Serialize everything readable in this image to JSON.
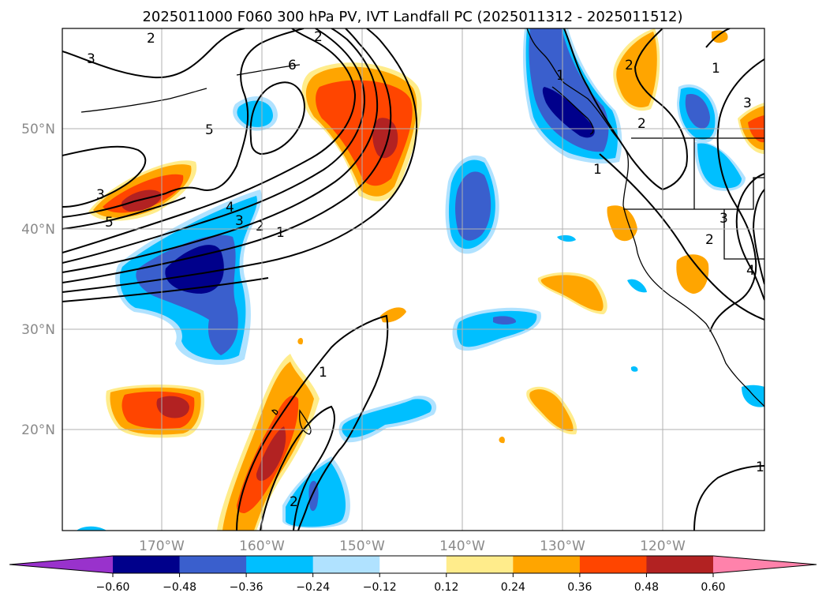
{
  "title": "2025011000 F060 300 hPa PV, IVT Landfall PC (2025011312 - 2025011512)",
  "lat_labels": [
    "50°N",
    "40°N",
    "30°N",
    "20°N"
  ],
  "lon_labels": [
    "170°W",
    "160°W",
    "150°W",
    "140°W",
    "130°W",
    "120°W"
  ],
  "colorbar": {
    "ticks": [
      "−0.60",
      "−0.48",
      "−0.36",
      "−0.24",
      "−0.12",
      "0.12",
      "0.24",
      "0.36",
      "0.48",
      "0.60"
    ],
    "colors": [
      "#9932cc",
      "#00008b",
      "#3a5fcd",
      "#00bfff",
      "#b0e2ff",
      "#ffffff",
      "#ffec8b",
      "#ffa500",
      "#ff4500",
      "#b22222",
      "#ff82ab"
    ]
  },
  "contour_labels": {
    "c1": "2",
    "c2": "3",
    "c3": "6",
    "c4": "5",
    "c5": "3",
    "c6": "5",
    "c7": "4",
    "c8": "3",
    "c9": "2",
    "c10": "1",
    "c11": "1",
    "c12": "1",
    "c13": "1",
    "c14": "2",
    "c15": "2",
    "c16": "1",
    "c17": "3",
    "c18": "3",
    "c19": "2",
    "c20": "4",
    "c21": "1",
    "c22": "2",
    "c23": "2"
  }
}
